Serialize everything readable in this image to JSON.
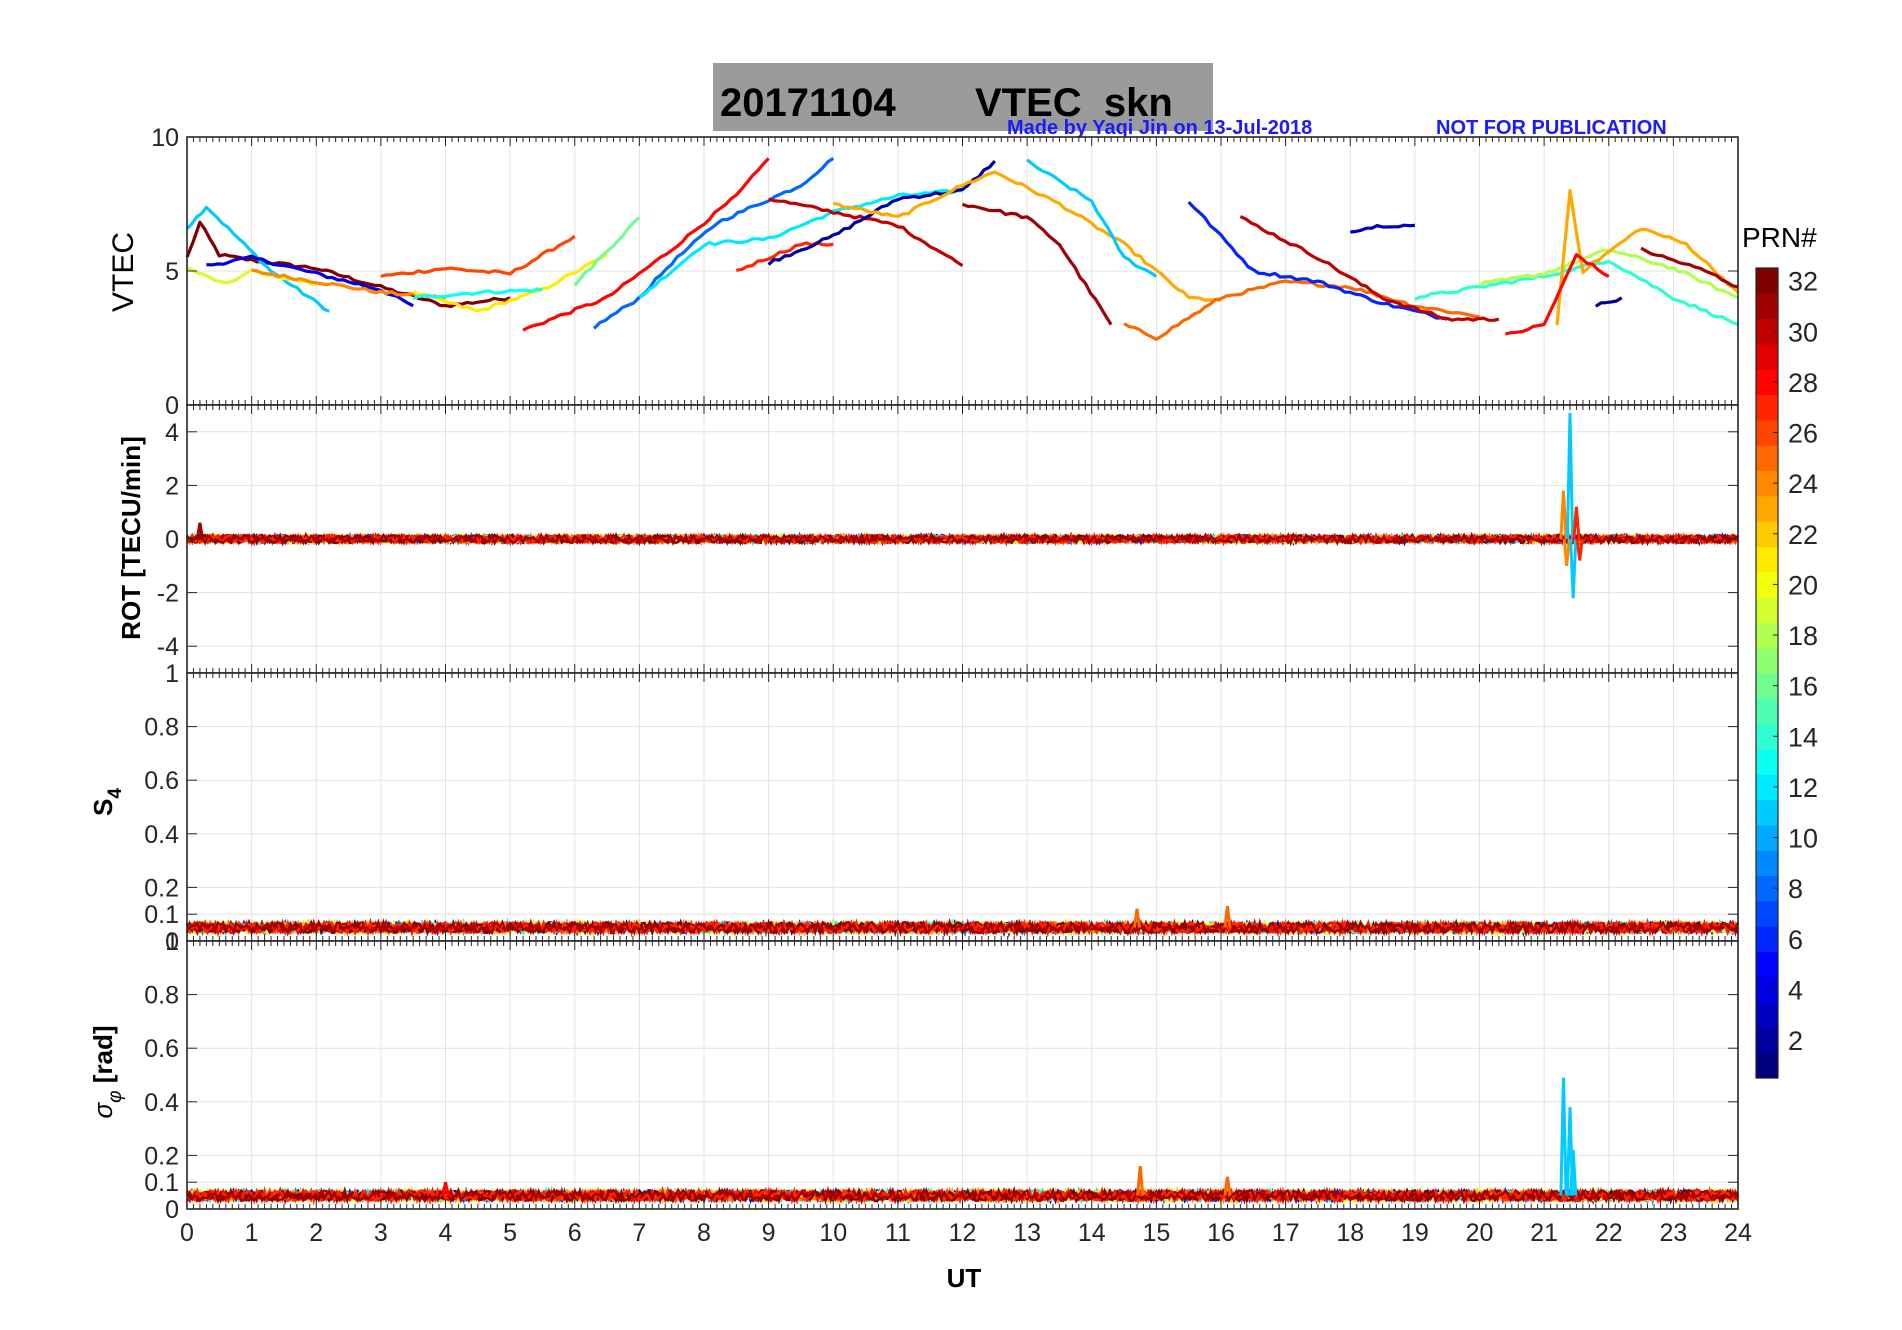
{
  "title": {
    "date": "20171104",
    "label": "VTEC  skn",
    "credit": "Made by Yaqi Jin on 13-Jul-2018",
    "notice": "NOT FOR PUBLICATION"
  },
  "colors": {
    "credit": "#1a1aff",
    "title_box": "#9b9b9b"
  },
  "chart_data": [
    {
      "type": "line",
      "panel": "vtec",
      "ylabel": "VTEC",
      "ylim": [
        0,
        10
      ],
      "yticks": [
        0,
        5,
        10
      ],
      "xlim": [
        0,
        24
      ],
      "grid": true,
      "series_note_prn_range": [
        1,
        32
      ],
      "series": [
        {
          "prn": 32,
          "points": [
            [
              0.0,
              5.5
            ],
            [
              0.2,
              6.8
            ],
            [
              0.5,
              5.6
            ],
            [
              1.0,
              5.4
            ],
            [
              2.0,
              5.1
            ],
            [
              3.0,
              4.4
            ],
            [
              4.0,
              3.7
            ],
            [
              5.0,
              4.0
            ]
          ]
        },
        {
          "prn": 11,
          "points": [
            [
              0.0,
              6.6
            ],
            [
              0.3,
              7.4
            ],
            [
              0.8,
              6.2
            ],
            [
              1.3,
              5.0
            ],
            [
              2.2,
              3.5
            ]
          ]
        },
        {
          "prn": 19,
          "points": [
            [
              0.0,
              5.1
            ],
            [
              0.6,
              4.5
            ],
            [
              1.0,
              5.0
            ],
            [
              2.0,
              4.5
            ]
          ]
        },
        {
          "prn": 4,
          "points": [
            [
              0.3,
              5.2
            ],
            [
              1.0,
              5.5
            ],
            [
              2.0,
              4.9
            ],
            [
              3.0,
              4.3
            ],
            [
              3.5,
              3.7
            ]
          ]
        },
        {
          "prn": 24,
          "points": [
            [
              1.0,
              5.0
            ],
            [
              2.0,
              4.6
            ],
            [
              3.0,
              4.2
            ],
            [
              4.0,
              4.0
            ]
          ]
        },
        {
          "prn": 26,
          "points": [
            [
              3.0,
              4.8
            ],
            [
              4.0,
              5.1
            ],
            [
              5.0,
              4.9
            ],
            [
              6.0,
              6.3
            ]
          ]
        },
        {
          "prn": 21,
          "points": [
            [
              3.5,
              4.2
            ],
            [
              4.5,
              3.5
            ],
            [
              5.5,
              4.3
            ],
            [
              6.5,
              5.6
            ]
          ]
        },
        {
          "prn": 13,
          "points": [
            [
              3.5,
              4.0
            ],
            [
              4.5,
              4.2
            ],
            [
              5.5,
              4.3
            ]
          ]
        },
        {
          "prn": 28,
          "points": [
            [
              5.2,
              2.8
            ],
            [
              6.5,
              4.0
            ],
            [
              7.5,
              5.8
            ],
            [
              8.5,
              7.8
            ],
            [
              9.0,
              9.2
            ]
          ]
        },
        {
          "prn": 8,
          "points": [
            [
              6.3,
              2.9
            ],
            [
              7.0,
              4.0
            ],
            [
              7.5,
              5.3
            ],
            [
              8.2,
              6.8
            ],
            [
              9.5,
              8.2
            ],
            [
              10.0,
              9.2
            ]
          ]
        },
        {
          "prn": 16,
          "points": [
            [
              6.0,
              4.5
            ],
            [
              7.0,
              7.0
            ]
          ]
        },
        {
          "prn": 12,
          "points": [
            [
              7.0,
              4.0
            ],
            [
              8.0,
              6.0
            ],
            [
              9.0,
              6.2
            ],
            [
              10.0,
              7.2
            ],
            [
              11.0,
              7.8
            ],
            [
              12.0,
              8.0
            ]
          ]
        },
        {
          "prn": 27,
          "points": [
            [
              8.5,
              5.0
            ],
            [
              9.5,
              6.0
            ],
            [
              10.0,
              6.0
            ]
          ]
        },
        {
          "prn": 30,
          "points": [
            [
              9.0,
              7.7
            ],
            [
              10.0,
              7.2
            ],
            [
              11.0,
              6.7
            ],
            [
              12.0,
              5.2
            ]
          ]
        },
        {
          "prn": 2,
          "points": [
            [
              9.0,
              5.3
            ],
            [
              10.0,
              6.3
            ],
            [
              11.0,
              7.7
            ],
            [
              12.0,
              8.0
            ],
            [
              12.5,
              9.1
            ]
          ]
        },
        {
          "prn": 23,
          "points": [
            [
              10.0,
              7.5
            ],
            [
              11.0,
              7.0
            ],
            [
              12.0,
              8.2
            ],
            [
              12.5,
              8.7
            ],
            [
              13.5,
              7.5
            ],
            [
              14.5,
              6.0
            ],
            [
              15.5,
              4.0
            ],
            [
              16.0,
              3.9
            ]
          ]
        },
        {
          "prn": 11,
          "points": [
            [
              13.0,
              9.1
            ],
            [
              14.0,
              7.6
            ],
            [
              14.5,
              5.5
            ],
            [
              15.0,
              4.8
            ]
          ]
        },
        {
          "prn": 31,
          "points": [
            [
              12.0,
              7.5
            ],
            [
              13.0,
              7.0
            ],
            [
              13.5,
              6.0
            ],
            [
              14.3,
              3.0
            ]
          ]
        },
        {
          "prn": 25,
          "points": [
            [
              14.5,
              3.0
            ],
            [
              15.0,
              2.5
            ],
            [
              16.0,
              4.0
            ],
            [
              17.0,
              4.6
            ],
            [
              18.0,
              4.4
            ],
            [
              19.0,
              3.7
            ],
            [
              20.0,
              3.3
            ]
          ]
        },
        {
          "prn": 6,
          "points": [
            [
              15.5,
              7.6
            ],
            [
              16.5,
              5.0
            ],
            [
              17.5,
              4.6
            ],
            [
              18.5,
              3.8
            ],
            [
              19.5,
              3.2
            ]
          ]
        },
        {
          "prn": 3,
          "points": [
            [
              18.0,
              6.5
            ],
            [
              18.5,
              6.7
            ],
            [
              19.0,
              6.7
            ]
          ]
        },
        {
          "prn": 30,
          "points": [
            [
              16.3,
              7.0
            ],
            [
              17.5,
              5.5
            ],
            [
              18.5,
              4.0
            ],
            [
              19.5,
              3.2
            ],
            [
              20.3,
              3.2
            ]
          ]
        },
        {
          "prn": 14,
          "points": [
            [
              19.0,
              4.0
            ],
            [
              20.0,
              4.4
            ],
            [
              21.0,
              4.8
            ],
            [
              22.0,
              5.4
            ],
            [
              23.0,
              4.0
            ],
            [
              24.0,
              3.0
            ]
          ]
        },
        {
          "prn": 18,
          "points": [
            [
              20.0,
              4.5
            ],
            [
              21.0,
              4.9
            ],
            [
              22.0,
              5.8
            ],
            [
              23.0,
              5.1
            ],
            [
              24.0,
              4.0
            ]
          ]
        },
        {
          "prn": 23,
          "points": [
            [
              21.2,
              3.0
            ],
            [
              21.4,
              8.0
            ],
            [
              21.6,
              5.0
            ],
            [
              22.5,
              6.6
            ],
            [
              23.2,
              6.0
            ],
            [
              24.0,
              4.2
            ]
          ]
        },
        {
          "prn": 28,
          "points": [
            [
              20.4,
              2.6
            ],
            [
              21.0,
              3.0
            ],
            [
              21.5,
              5.6
            ],
            [
              22.0,
              4.8
            ]
          ]
        },
        {
          "prn": 31,
          "points": [
            [
              22.5,
              5.8
            ],
            [
              23.5,
              5.0
            ],
            [
              24.0,
              4.4
            ]
          ]
        },
        {
          "prn": 2,
          "points": [
            [
              21.8,
              3.7
            ],
            [
              22.2,
              4.0
            ]
          ]
        }
      ]
    },
    {
      "type": "line",
      "panel": "rot",
      "ylabel": "ROT [TECU/min]",
      "ylim": [
        -5,
        5
      ],
      "yticks": [
        -4,
        -2,
        0,
        2,
        4
      ],
      "xlim": [
        0,
        24
      ],
      "grid": true,
      "baseline": 0,
      "baseline_noise": 0.15,
      "spikes": [
        {
          "x": 21.3,
          "y": 1.8,
          "prn": 24
        },
        {
          "x": 21.35,
          "y": -1.0,
          "prn": 24
        },
        {
          "x": 21.4,
          "y": 4.7,
          "prn": 11
        },
        {
          "x": 21.45,
          "y": -2.2,
          "prn": 11
        },
        {
          "x": 21.5,
          "y": 1.2,
          "prn": 27
        },
        {
          "x": 21.55,
          "y": -0.8,
          "prn": 27
        },
        {
          "x": 0.2,
          "y": 0.6,
          "prn": 31
        }
      ]
    },
    {
      "type": "line",
      "panel": "s4",
      "ylabel": "S",
      "ylabel_sub": "4",
      "ylim": [
        0,
        1
      ],
      "yticks": [
        0,
        0.1,
        0.2,
        0.4,
        0.6,
        0.8,
        1
      ],
      "xlim": [
        0,
        24
      ],
      "grid": true,
      "baseline": 0.05,
      "baseline_noise": 0.02,
      "spikes": [
        {
          "x": 14.7,
          "y": 0.12,
          "prn": 25
        },
        {
          "x": 16.1,
          "y": 0.13,
          "prn": 25
        }
      ]
    },
    {
      "type": "line",
      "panel": "sigphi",
      "ylabel": "[rad]",
      "ylabel_greek": "σ",
      "ylabel_sub": "φ",
      "ylim": [
        0,
        1
      ],
      "yticks": [
        0,
        0.1,
        0.2,
        0.4,
        0.6,
        0.8,
        1
      ],
      "xlim": [
        0,
        24
      ],
      "xticks": [
        0,
        1,
        2,
        3,
        4,
        5,
        6,
        7,
        8,
        9,
        10,
        11,
        12,
        13,
        14,
        15,
        16,
        17,
        18,
        19,
        20,
        21,
        22,
        23,
        24
      ],
      "xlabel": "UT",
      "grid": true,
      "baseline": 0.05,
      "baseline_noise": 0.02,
      "spikes": [
        {
          "x": 21.3,
          "y": 0.49,
          "prn": 11
        },
        {
          "x": 21.4,
          "y": 0.38,
          "prn": 11
        },
        {
          "x": 21.45,
          "y": 0.22,
          "prn": 11
        },
        {
          "x": 14.75,
          "y": 0.16,
          "prn": 25
        },
        {
          "x": 16.1,
          "y": 0.12,
          "prn": 25
        },
        {
          "x": 4.0,
          "y": 0.1,
          "prn": 28
        }
      ]
    }
  ],
  "colorbar": {
    "label": "PRN#",
    "min": 1,
    "max": 32,
    "ticks": [
      2,
      4,
      6,
      8,
      10,
      12,
      14,
      16,
      18,
      20,
      22,
      24,
      26,
      28,
      30,
      32
    ],
    "colormap": "jet"
  }
}
